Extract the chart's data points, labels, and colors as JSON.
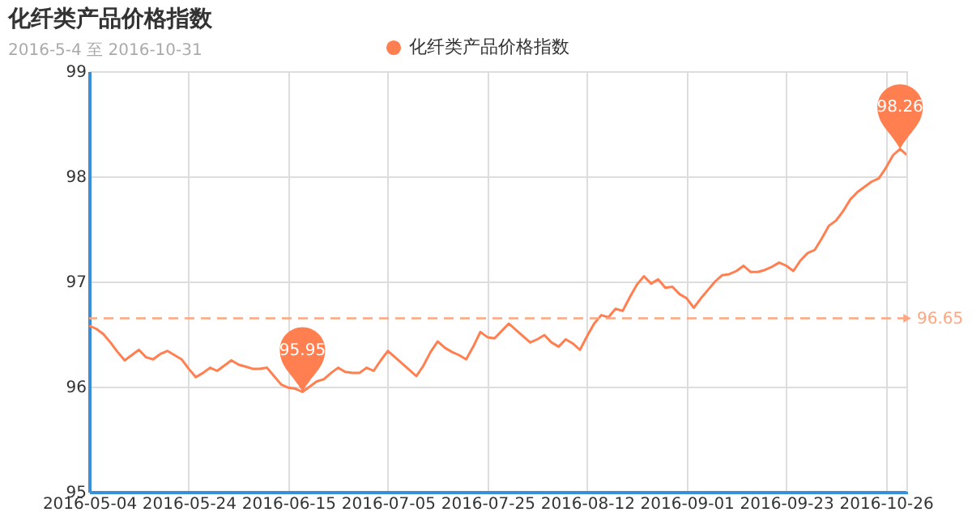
{
  "chart_data": {
    "type": "line",
    "title": "化纤类产品价格指数",
    "subtitle": "2016-5-4 至 2016-10-31",
    "categories": [
      "2016-05-04",
      null,
      null,
      null,
      null,
      null,
      null,
      null,
      null,
      null,
      null,
      null,
      null,
      null,
      "2016-05-24",
      null,
      null,
      null,
      null,
      null,
      null,
      null,
      null,
      null,
      null,
      null,
      null,
      null,
      "2016-06-15",
      null,
      null,
      null,
      null,
      null,
      null,
      null,
      null,
      null,
      null,
      null,
      null,
      null,
      "2016-07-05",
      null,
      null,
      null,
      null,
      null,
      null,
      null,
      null,
      null,
      null,
      null,
      null,
      null,
      "2016-07-25",
      null,
      null,
      null,
      null,
      null,
      null,
      null,
      null,
      null,
      null,
      null,
      null,
      null,
      "2016-08-12",
      null,
      null,
      null,
      null,
      null,
      null,
      null,
      null,
      null,
      null,
      null,
      null,
      null,
      "2016-09-01",
      null,
      null,
      null,
      null,
      null,
      null,
      null,
      null,
      null,
      null,
      null,
      null,
      null,
      "2016-09-23",
      null,
      null,
      null,
      null,
      null,
      null,
      null,
      null,
      null,
      null,
      null,
      null,
      null,
      "2016-10-26",
      null,
      null,
      null
    ],
    "series": [
      {
        "name": "化纤类产品价格指数",
        "color": "#ff7f50",
        "values": [
          96.58,
          96.55,
          96.5,
          96.42,
          96.33,
          96.25,
          96.3,
          96.35,
          96.28,
          96.26,
          96.31,
          96.34,
          96.3,
          96.26,
          96.17,
          96.09,
          96.13,
          96.18,
          96.15,
          96.2,
          96.25,
          96.21,
          96.19,
          96.17,
          96.17,
          96.18,
          96.1,
          96.02,
          95.99,
          95.98,
          95.95,
          96.0,
          96.05,
          96.07,
          96.13,
          96.18,
          96.14,
          96.13,
          96.13,
          96.18,
          96.15,
          96.25,
          96.34,
          96.28,
          96.22,
          96.16,
          96.1,
          96.2,
          96.33,
          96.43,
          96.37,
          96.33,
          96.3,
          96.26,
          96.38,
          96.52,
          96.47,
          96.46,
          96.53,
          96.6,
          96.54,
          96.48,
          96.42,
          96.45,
          96.49,
          96.42,
          96.38,
          96.45,
          96.41,
          96.35,
          96.48,
          96.6,
          96.68,
          96.66,
          96.74,
          96.72,
          96.85,
          96.97,
          97.05,
          96.98,
          97.02,
          96.94,
          96.95,
          96.88,
          96.84,
          96.75,
          96.84,
          96.92,
          97.0,
          97.06,
          97.07,
          97.1,
          97.15,
          97.09,
          97.09,
          97.11,
          97.14,
          97.18,
          97.15,
          97.1,
          97.2,
          97.27,
          97.3,
          97.41,
          97.53,
          97.58,
          97.67,
          97.78,
          97.85,
          97.9,
          97.95,
          97.98,
          98.08,
          98.2,
          98.26,
          98.2
        ]
      }
    ],
    "ylim": [
      95,
      99
    ],
    "yticks": [
      95,
      96,
      97,
      98,
      99
    ],
    "grid": true,
    "legend": "top",
    "marker": "none",
    "line_style": "solid",
    "ref_lines": [
      {
        "axis": "y",
        "value": 96.65,
        "label": "96.65",
        "color": "#ffa57f",
        "line_style": "dashed"
      }
    ],
    "annotations": [
      {
        "text": "98.26",
        "y": 98.26
      },
      {
        "text": "95.95",
        "y": 95.95
      }
    ]
  }
}
